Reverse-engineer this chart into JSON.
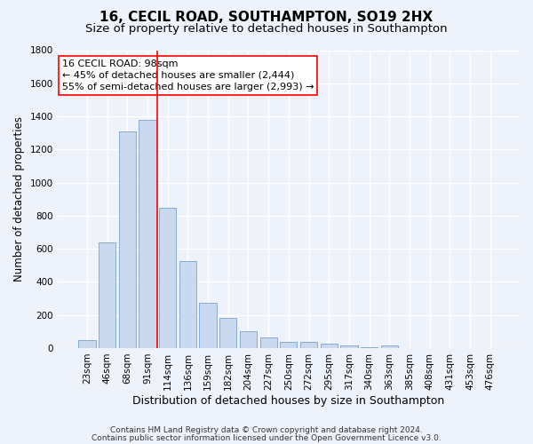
{
  "title": "16, CECIL ROAD, SOUTHAMPTON, SO19 2HX",
  "subtitle": "Size of property relative to detached houses in Southampton",
  "xlabel": "Distribution of detached houses by size in Southampton",
  "ylabel": "Number of detached properties",
  "bar_color": "#c9d9ef",
  "bar_edge_color": "#7aa0c8",
  "categories": [
    "23sqm",
    "46sqm",
    "68sqm",
    "91sqm",
    "114sqm",
    "136sqm",
    "159sqm",
    "182sqm",
    "204sqm",
    "227sqm",
    "250sqm",
    "272sqm",
    "295sqm",
    "317sqm",
    "340sqm",
    "363sqm",
    "385sqm",
    "408sqm",
    "431sqm",
    "453sqm",
    "476sqm"
  ],
  "values": [
    50,
    640,
    1310,
    1380,
    848,
    528,
    275,
    183,
    103,
    63,
    38,
    35,
    28,
    18,
    5,
    15,
    0,
    0,
    0,
    0,
    0
  ],
  "property_label": "16 CECIL ROAD: 98sqm",
  "annotation_line1": "← 45% of detached houses are smaller (2,444)",
  "annotation_line2": "55% of semi-detached houses are larger (2,993) →",
  "vline_position": 3.5,
  "footnote1": "Contains HM Land Registry data © Crown copyright and database right 2024.",
  "footnote2": "Contains public sector information licensed under the Open Government Licence v3.0.",
  "background_color": "#eef2fa",
  "ax_background": "#eef2fa",
  "grid_color": "#ffffff",
  "ylim": [
    0,
    1800
  ],
  "title_fontsize": 11,
  "subtitle_fontsize": 9.5,
  "xlabel_fontsize": 9,
  "ylabel_fontsize": 8.5,
  "tick_fontsize": 7.5,
  "vline_color": "red",
  "annotation_fontsize": 8
}
